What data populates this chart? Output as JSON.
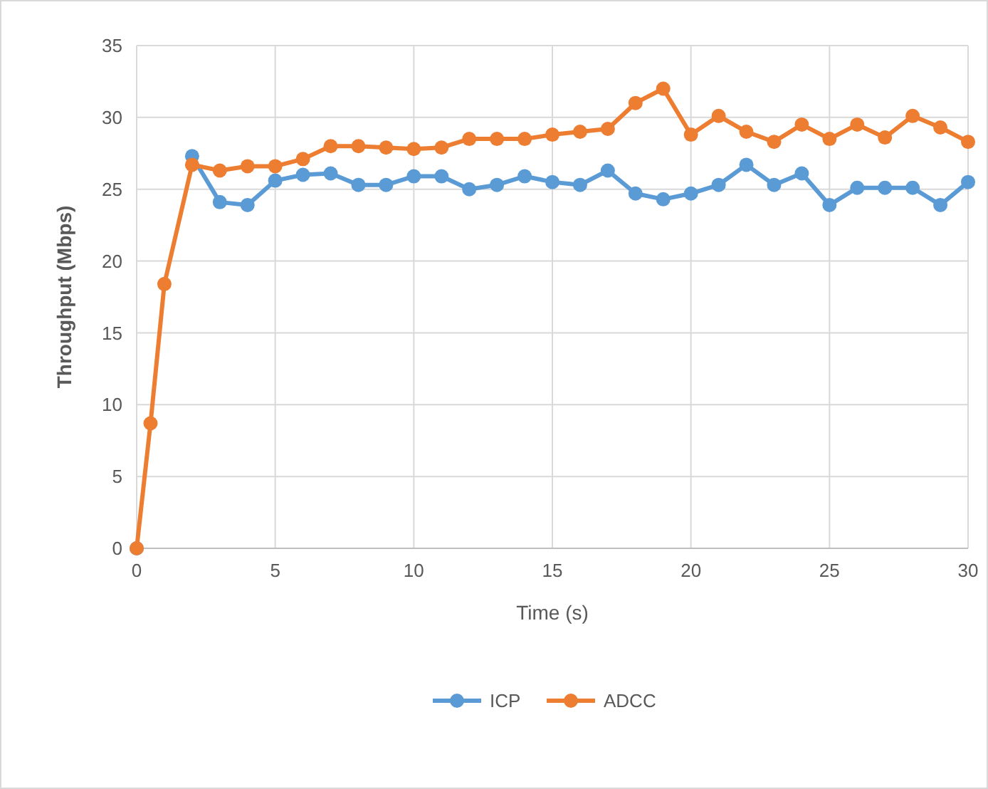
{
  "chart_data": {
    "type": "line",
    "xlabel": "Time (s)",
    "ylabel": "Throughput (Mbps)",
    "x": [
      0,
      0.5,
      1,
      2,
      3,
      4,
      5,
      6,
      7,
      8,
      9,
      10,
      11,
      12,
      13,
      14,
      15,
      16,
      17,
      18,
      19,
      20,
      21,
      22,
      23,
      24,
      25,
      26,
      27,
      28,
      29,
      30
    ],
    "series": [
      {
        "name": "ICP",
        "color": "#5b9bd5",
        "values": [
          0,
          null,
          null,
          27.3,
          24.1,
          23.9,
          25.6,
          26.0,
          26.1,
          25.3,
          25.3,
          25.9,
          25.9,
          25.0,
          25.3,
          25.9,
          25.5,
          25.3,
          26.3,
          24.7,
          24.3,
          24.7,
          25.3,
          26.7,
          25.3,
          26.1,
          23.9,
          25.1,
          25.1,
          25.1,
          23.9,
          25.5
        ]
      },
      {
        "name": "ADCC",
        "color": "#ed7d31",
        "values": [
          0,
          8.7,
          18.4,
          26.7,
          26.3,
          26.6,
          26.6,
          27.1,
          28.0,
          28.0,
          27.9,
          27.8,
          27.9,
          28.5,
          28.5,
          28.5,
          28.8,
          29.0,
          29.2,
          31.0,
          32.0,
          28.8,
          30.1,
          29.0,
          28.3,
          29.5,
          28.5,
          29.5,
          28.6,
          30.1,
          29.3,
          28.3
        ]
      }
    ],
    "xlim": [
      0,
      30
    ],
    "xticks": [
      0,
      5,
      10,
      15,
      20,
      25,
      30
    ],
    "ylim": [
      0,
      35
    ],
    "yticks": [
      0,
      5,
      10,
      15,
      20,
      25,
      30,
      35
    ],
    "grid": true,
    "legend": "bottom",
    "marker": "circle",
    "line_style": "solid"
  }
}
